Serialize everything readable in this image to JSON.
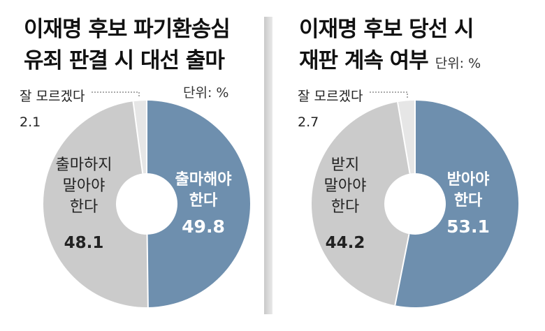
{
  "unit_label": "단위: %",
  "charts": [
    {
      "title_lines": [
        "이재명 후보 파기환송심",
        "유죄 판결 시 대선 출마"
      ],
      "chart_data": {
        "type": "pie",
        "title": "이재명 후보 파기환송심 유죄 판결 시 대선 출마",
        "unit": "단위: %",
        "slices": [
          {
            "label": "출마해야 한다",
            "label_lines": [
              "출마해야",
              "한다"
            ],
            "value": 49.8,
            "value_text": "49.8",
            "color": "#6e8fae"
          },
          {
            "label": "출마하지 말아야 한다",
            "label_lines": [
              "출마하지",
              "말아야",
              "한다"
            ],
            "value": 48.1,
            "value_text": "48.1",
            "color": "#cbcbcb"
          },
          {
            "label": "잘 모르겠다",
            "label_lines": [
              "잘 모르겠다"
            ],
            "value": 2.1,
            "value_text": "2.1",
            "color": "#e6e6e6"
          }
        ]
      }
    },
    {
      "title_lines": [
        "이재명 후보 당선 시",
        "재판 계속 여부"
      ],
      "chart_data": {
        "type": "pie",
        "title": "이재명 후보 당선 시 재판 계속 여부",
        "unit": "단위: %",
        "slices": [
          {
            "label": "받아야 한다",
            "label_lines": [
              "받아야",
              "한다"
            ],
            "value": 53.1,
            "value_text": "53.1",
            "color": "#6e8fae"
          },
          {
            "label": "받지 말아야 한다",
            "label_lines": [
              "받지",
              "말아야",
              "한다"
            ],
            "value": 44.2,
            "value_text": "44.2",
            "color": "#cbcbcb"
          },
          {
            "label": "잘 모르겠다",
            "label_lines": [
              "잘 모르겠다"
            ],
            "value": 2.7,
            "value_text": "2.7",
            "color": "#e6e6e6"
          }
        ]
      }
    }
  ]
}
